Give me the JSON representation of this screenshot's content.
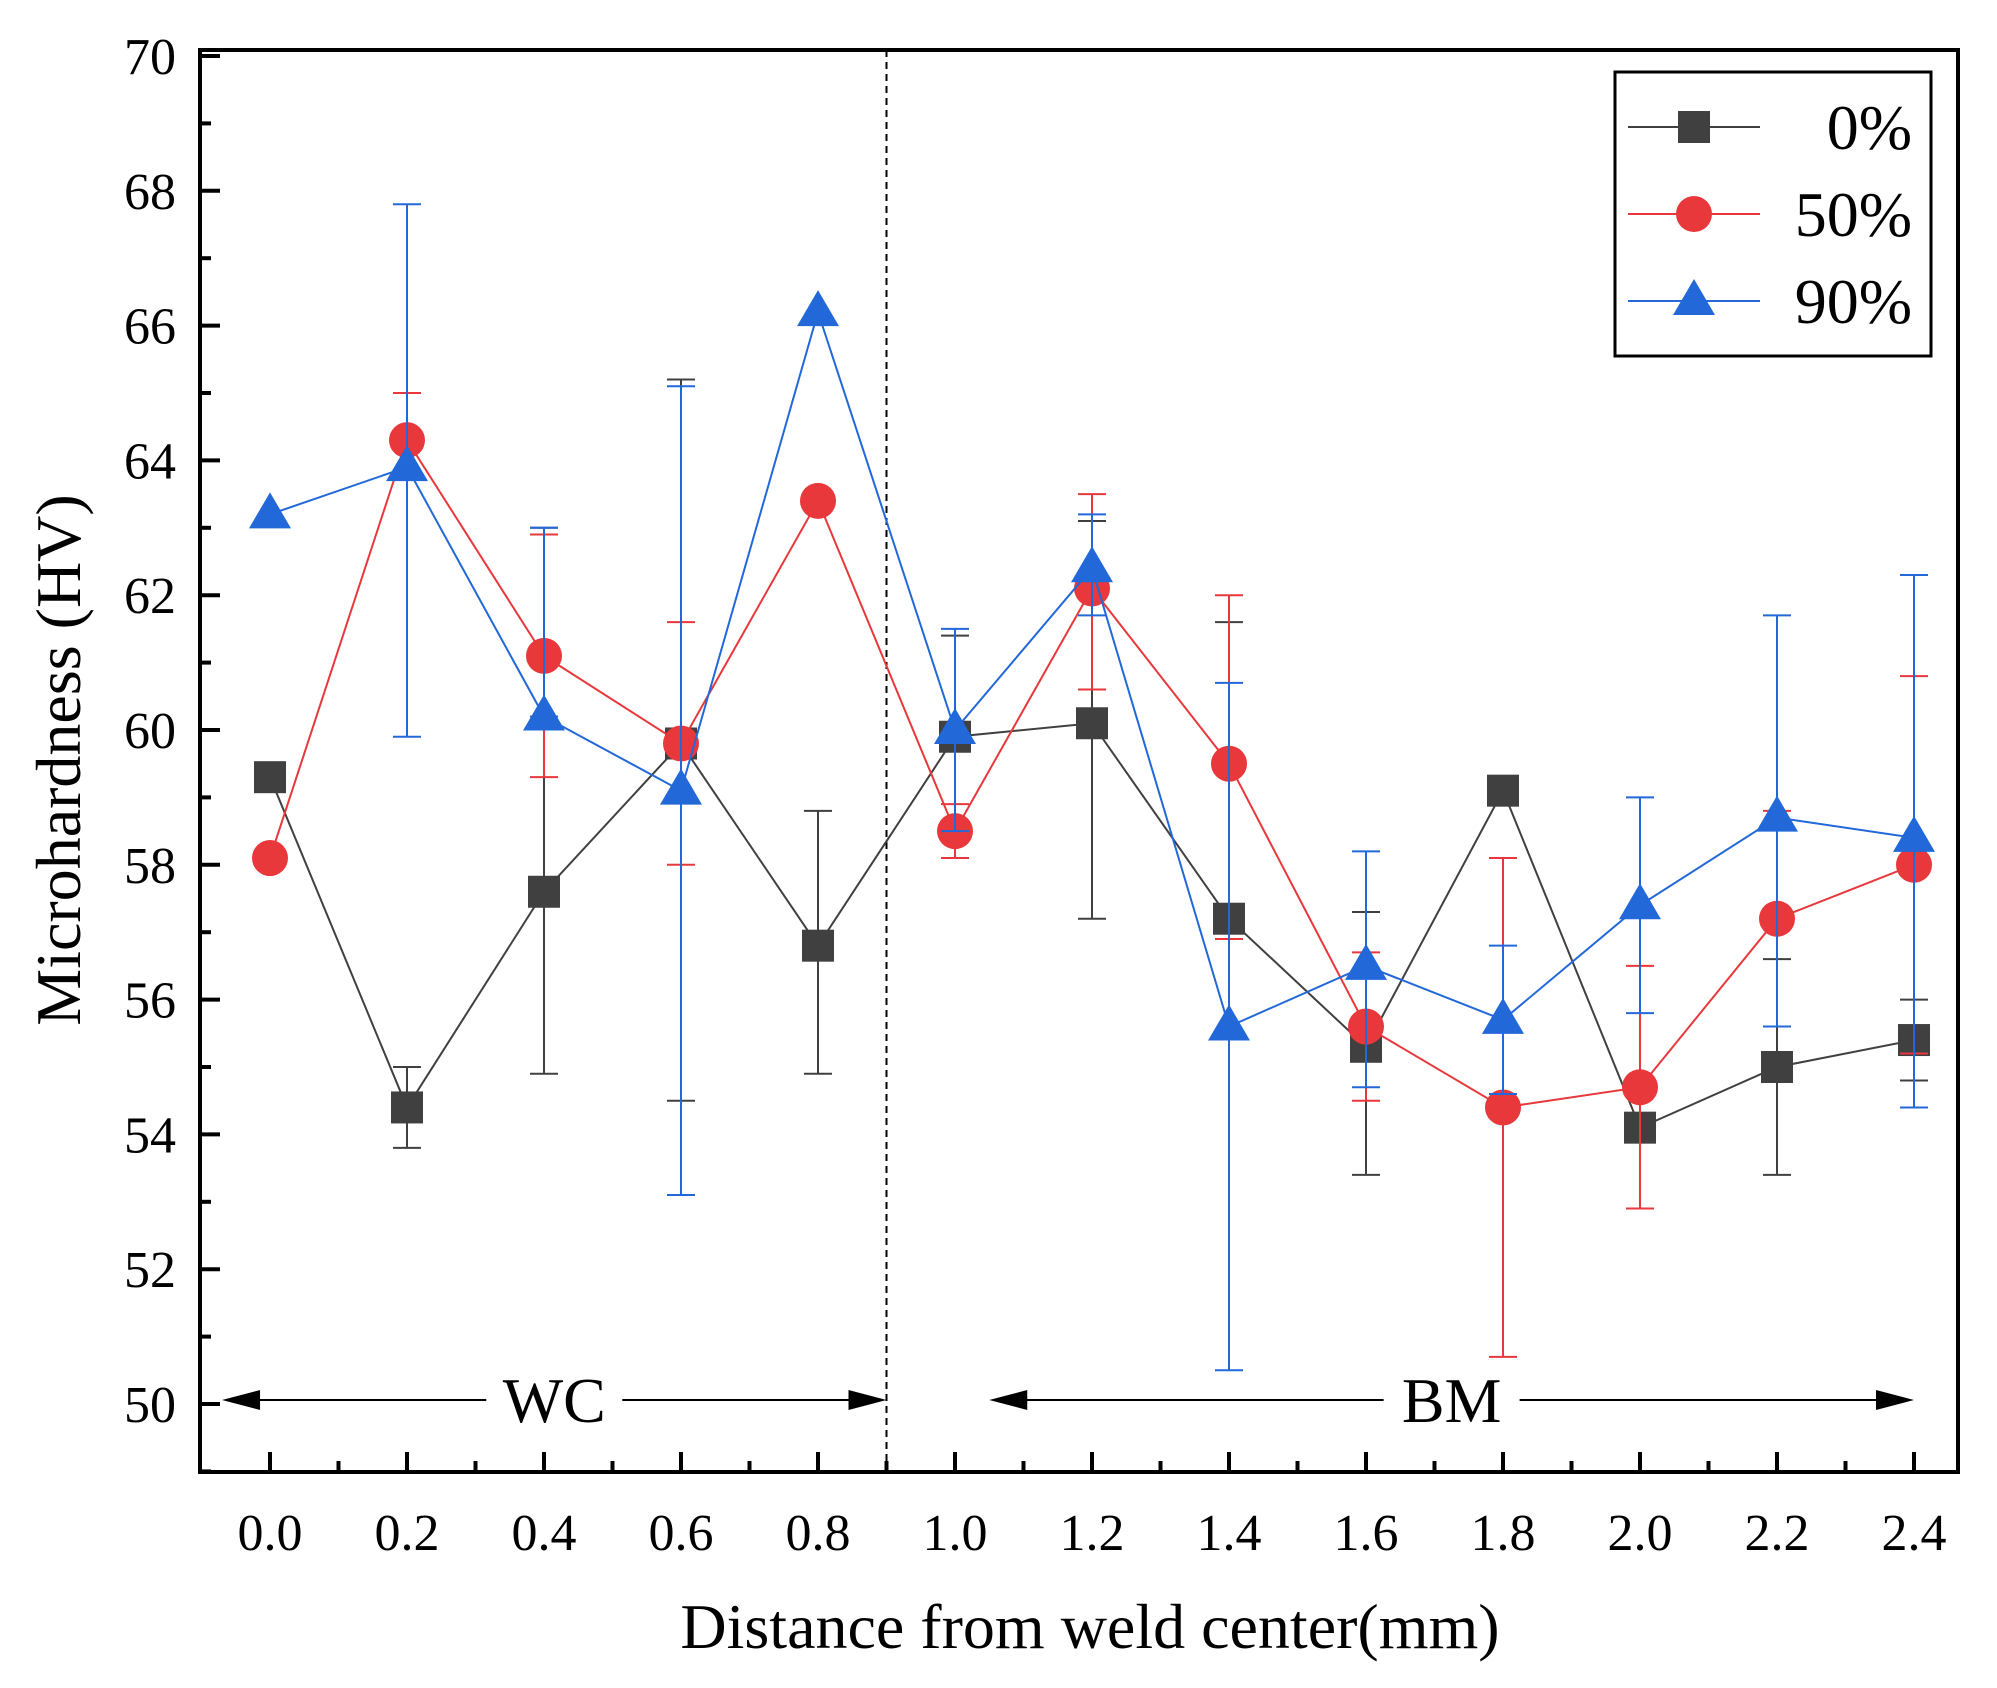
{
  "chart_data": {
    "type": "line",
    "title": "",
    "xlabel": "Distance from weld center(mm)",
    "ylabel": "Microhardness (HV)",
    "xlim": [
      -0.1,
      2.45
    ],
    "ylim": [
      48,
      70
    ],
    "x_ticks": [
      0.0,
      0.2,
      0.4,
      0.6,
      0.8,
      1.0,
      1.2,
      1.4,
      1.6,
      1.8,
      2.0,
      2.2,
      2.4
    ],
    "x_tick_labels": [
      "0.0",
      "0.2",
      "0.4",
      "0.6",
      "0.8",
      "1.0",
      "1.2",
      "1.4",
      "1.6",
      "1.8",
      "2.0",
      "2.2",
      "2.4"
    ],
    "y_ticks": [
      50,
      52,
      54,
      56,
      58,
      60,
      62,
      64,
      66,
      68,
      70
    ],
    "y_tick_labels": [
      "50",
      "52",
      "54",
      "56",
      "58",
      "60",
      "62",
      "64",
      "66",
      "68",
      "70"
    ],
    "x": [
      0.0,
      0.2,
      0.4,
      0.6,
      0.8,
      1.0,
      1.2,
      1.4,
      1.6,
      1.8,
      2.0,
      2.2,
      2.4
    ],
    "series": [
      {
        "name": "0%",
        "color": "#404040",
        "marker": "square",
        "values": [
          59.3,
          54.4,
          57.6,
          59.8,
          56.8,
          59.9,
          60.1,
          57.2,
          55.3,
          59.1,
          54.1,
          55.0,
          55.4
        ],
        "err_low": [
          59.3,
          53.8,
          54.9,
          54.5,
          54.9,
          59.9,
          57.2,
          57.2,
          53.4,
          59.1,
          54.1,
          53.4,
          54.8
        ],
        "err_high": [
          59.3,
          55.0,
          63.0,
          65.2,
          58.8,
          61.4,
          63.1,
          61.6,
          57.3,
          59.1,
          54.1,
          56.6,
          56.0
        ]
      },
      {
        "name": "50%",
        "color": "#e8383b",
        "marker": "circle",
        "values": [
          58.1,
          64.3,
          61.1,
          59.8,
          63.4,
          58.5,
          62.1,
          59.5,
          55.6,
          54.4,
          54.7,
          57.2,
          58.0
        ],
        "err_low": [
          58.1,
          64.3,
          59.3,
          58.0,
          63.4,
          58.1,
          60.6,
          56.9,
          54.5,
          50.7,
          52.9,
          55.6,
          55.2
        ],
        "err_high": [
          58.1,
          65.0,
          62.9,
          61.6,
          63.4,
          58.9,
          63.5,
          62.0,
          56.7,
          58.1,
          56.5,
          58.8,
          60.8
        ]
      },
      {
        "name": "90%",
        "color": "#2268d8",
        "marker": "triangle",
        "values": [
          63.2,
          63.9,
          60.2,
          59.1,
          66.2,
          60.0,
          62.4,
          55.6,
          56.5,
          55.7,
          57.4,
          58.7,
          58.4
        ],
        "err_low": [
          63.2,
          59.9,
          60.2,
          53.1,
          66.2,
          58.5,
          61.7,
          50.5,
          54.7,
          54.6,
          55.8,
          55.6,
          54.4
        ],
        "err_high": [
          63.2,
          67.8,
          63.0,
          65.1,
          66.2,
          61.5,
          63.2,
          60.7,
          58.2,
          56.8,
          59.0,
          61.7,
          62.3
        ]
      }
    ],
    "divider_x": 0.9,
    "annotations": [
      {
        "text": "WC",
        "from_x": -0.07,
        "to_x": 0.9,
        "y": 50
      },
      {
        "text": "BM",
        "from_x": 1.05,
        "to_x": 2.4,
        "y": 50
      }
    ],
    "legend_position": "top-right",
    "grid": false
  }
}
